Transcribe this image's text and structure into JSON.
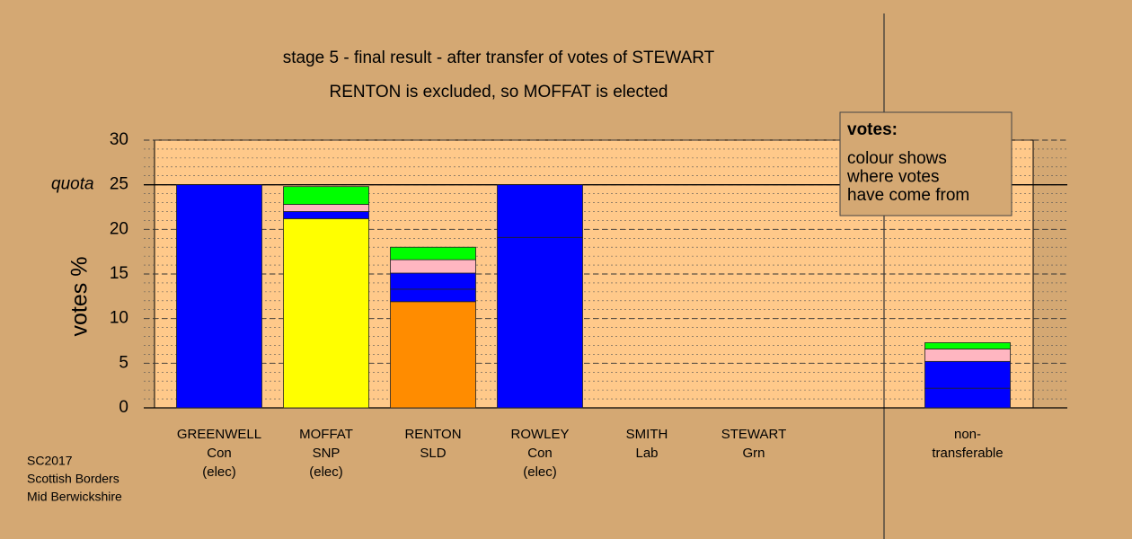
{
  "chart_data": {
    "type": "stacked_bar",
    "title": "stage 5 - final result - after transfer of votes of STEWART",
    "subtitle": "RENTON is excluded, so MOFFAT is elected",
    "y_label": "votes %",
    "ylim": [
      0,
      30
    ],
    "yticks": [
      0,
      5,
      10,
      15,
      20,
      25,
      30
    ],
    "minor_grid_step": 1,
    "grid": true,
    "quota": {
      "value": 25,
      "label": "quota"
    },
    "categories": [
      [
        "GREENWELL",
        "Con",
        "(elec)"
      ],
      [
        "MOFFAT",
        "SNP",
        "(elec)"
      ],
      [
        "RENTON",
        "SLD"
      ],
      [
        "ROWLEY",
        "Con",
        "(elec)"
      ],
      [
        "SMITH",
        "Lab"
      ],
      [
        "STEWART",
        "Grn"
      ],
      [
        "non-",
        "transferable"
      ]
    ],
    "stacks": [
      [
        {
          "value": 25,
          "color": "#0000ff"
        }
      ],
      [
        {
          "value": 21.2,
          "color": "#ffff00"
        },
        {
          "value": 0.8,
          "color": "#0000ff"
        },
        {
          "value": 0.8,
          "color": "#ffb6c1"
        },
        {
          "value": 2.0,
          "color": "#00ff00"
        }
      ],
      [
        {
          "value": 11.9,
          "color": "#ff8c00"
        },
        {
          "value": 1.4,
          "color": "#0000ff"
        },
        {
          "value": 1.8,
          "color": "#0000ff"
        },
        {
          "value": 1.5,
          "color": "#ffb6c1"
        },
        {
          "value": 1.4,
          "color": "#00ff00"
        }
      ],
      [
        {
          "value": 19.1,
          "color": "#0000ff"
        },
        {
          "value": 5.9,
          "color": "#0000ff"
        }
      ],
      [],
      [],
      [
        {
          "value": 2.2,
          "color": "#0000ff"
        },
        {
          "value": 3.0,
          "color": "#0000ff"
        },
        {
          "value": 1.4,
          "color": "#ffb6c1"
        },
        {
          "value": 0.7,
          "color": "#00ff00"
        }
      ]
    ],
    "legend": {
      "heading": "votes:",
      "lines": [
        "colour shows",
        "where votes",
        "have come from"
      ]
    },
    "footer": [
      "SC2017",
      "Scottish Borders",
      "Mid Berwickshire"
    ]
  }
}
